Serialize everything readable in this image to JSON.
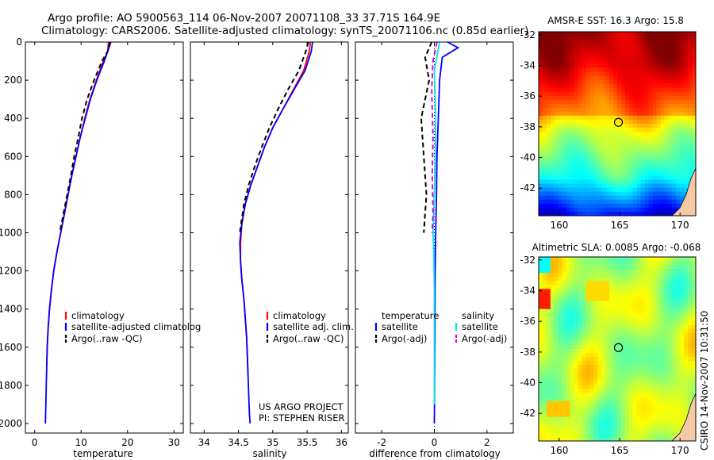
{
  "header": {
    "line1": "Argo profile: AO 5900563_114 06-Nov-2007 20071108_33 37.71S 164.9E",
    "line2": "Climatology: CARS2006. Satellite-adjusted climatology: synTS_20071106.nc (0.85d earlier)"
  },
  "colors": {
    "climatology": "#ff0000",
    "satellite": "#0000ff",
    "argo": "#000000",
    "salinity_satellite": "#00e5e5",
    "salinity_argo": "#dd00dd"
  },
  "chart_data": [
    {
      "type": "line",
      "id": "temperature",
      "xlabel": "temperature",
      "ylabel": "",
      "xlim": [
        -2,
        32
      ],
      "ylim": [
        2050,
        0
      ],
      "xticks": [
        0,
        10,
        20,
        30
      ],
      "yticks": [
        0,
        200,
        400,
        600,
        800,
        1000,
        1200,
        1400,
        1600,
        1800,
        2000
      ],
      "series": [
        {
          "name": "climatology",
          "role": "climatology",
          "style": "solid",
          "points": [
            [
              15.9,
              0
            ],
            [
              15.7,
              50
            ],
            [
              14.8,
              100
            ],
            [
              13.3,
              200
            ],
            [
              11.9,
              300
            ],
            [
              10.8,
              400
            ],
            [
              9.8,
              500
            ],
            [
              8.9,
              600
            ],
            [
              8.0,
              700
            ],
            [
              7.2,
              800
            ],
            [
              6.4,
              900
            ],
            [
              5.6,
              1000
            ],
            [
              4.8,
              1100
            ],
            [
              4.1,
              1200
            ],
            [
              3.6,
              1300
            ],
            [
              3.2,
              1400
            ],
            [
              2.9,
              1500
            ],
            [
              2.7,
              1600
            ],
            [
              2.6,
              1700
            ]
          ]
        },
        {
          "name": "satellite-adjusted climatology",
          "role": "satellite",
          "style": "solid",
          "points": [
            [
              16.4,
              0
            ],
            [
              16.0,
              30
            ],
            [
              15.0,
              100
            ],
            [
              13.4,
              200
            ],
            [
              12.0,
              300
            ],
            [
              10.9,
              400
            ],
            [
              9.8,
              500
            ],
            [
              8.9,
              600
            ],
            [
              8.0,
              700
            ],
            [
              7.2,
              800
            ],
            [
              6.4,
              900
            ],
            [
              5.6,
              1000
            ],
            [
              4.8,
              1100
            ],
            [
              4.1,
              1200
            ],
            [
              3.6,
              1300
            ],
            [
              3.2,
              1400
            ],
            [
              2.9,
              1500
            ],
            [
              2.7,
              1600
            ],
            [
              2.6,
              1700
            ],
            [
              2.5,
              1800
            ],
            [
              2.4,
              1900
            ],
            [
              2.3,
              2000
            ]
          ]
        },
        {
          "name": "Argo(..raw -QC)",
          "role": "argo",
          "style": "dashed",
          "points": [
            [
              16.2,
              0
            ],
            [
              15.7,
              50
            ],
            [
              14.5,
              100
            ],
            [
              12.8,
              200
            ],
            [
              11.3,
              300
            ],
            [
              10.2,
              400
            ],
            [
              9.4,
              500
            ],
            [
              8.5,
              600
            ],
            [
              7.8,
              700
            ],
            [
              7.0,
              800
            ],
            [
              6.2,
              900
            ],
            [
              5.4,
              1000
            ]
          ]
        }
      ],
      "legend": [
        "climatology",
        "satellite-adjusted climatolog",
        "Argo(..raw -QC)"
      ]
    },
    {
      "type": "line",
      "id": "salinity",
      "xlabel": "salinity",
      "ylabel": "",
      "xlim": [
        33.8,
        36.1
      ],
      "ylim": [
        2050,
        0
      ],
      "xticks": [
        34,
        34.5,
        35,
        35.5,
        36
      ],
      "xticklabels": [
        "34",
        "34.5",
        "35",
        "35.5",
        "36"
      ],
      "series": [
        {
          "name": "climatology",
          "role": "climatology",
          "style": "solid",
          "points": [
            [
              35.55,
              0
            ],
            [
              35.53,
              50
            ],
            [
              35.45,
              150
            ],
            [
              35.3,
              250
            ],
            [
              35.15,
              350
            ],
            [
              35.0,
              450
            ],
            [
              34.88,
              550
            ],
            [
              34.78,
              650
            ],
            [
              34.68,
              750
            ],
            [
              34.6,
              850
            ],
            [
              34.55,
              950
            ],
            [
              34.53,
              1050
            ],
            [
              34.53,
              1150
            ],
            [
              34.55,
              1250
            ],
            [
              34.58,
              1350
            ],
            [
              34.6,
              1450
            ],
            [
              34.62,
              1550
            ],
            [
              34.63,
              1650
            ],
            [
              34.64,
              1750
            ]
          ]
        },
        {
          "name": "satellite adj. clim.",
          "role": "satellite",
          "style": "solid",
          "points": [
            [
              35.58,
              0
            ],
            [
              35.56,
              50
            ],
            [
              35.47,
              150
            ],
            [
              35.31,
              250
            ],
            [
              35.15,
              350
            ],
            [
              35.0,
              450
            ],
            [
              34.88,
              550
            ],
            [
              34.78,
              650
            ],
            [
              34.68,
              750
            ],
            [
              34.6,
              850
            ],
            [
              34.55,
              950
            ],
            [
              34.52,
              1050
            ],
            [
              34.53,
              1150
            ],
            [
              34.55,
              1250
            ],
            [
              34.58,
              1350
            ],
            [
              34.6,
              1450
            ],
            [
              34.62,
              1550
            ],
            [
              34.63,
              1650
            ],
            [
              34.64,
              1750
            ],
            [
              34.65,
              1850
            ],
            [
              34.66,
              1950
            ],
            [
              34.67,
              2000
            ]
          ]
        },
        {
          "name": "Argo(..raw -QC)",
          "role": "argo",
          "style": "dashed",
          "points": [
            [
              35.52,
              0
            ],
            [
              35.48,
              50
            ],
            [
              35.38,
              150
            ],
            [
              35.22,
              250
            ],
            [
              35.08,
              350
            ],
            [
              34.95,
              450
            ],
            [
              34.84,
              550
            ],
            [
              34.74,
              650
            ],
            [
              34.65,
              750
            ],
            [
              34.58,
              850
            ],
            [
              34.54,
              950
            ],
            [
              34.52,
              1000
            ]
          ]
        }
      ],
      "legend": [
        "climatology",
        "satellite adj. clim.",
        "Argo(..raw -QC)"
      ],
      "annotations": [
        "US ARGO PROJECT",
        "PI: STEPHEN RISER"
      ]
    },
    {
      "type": "line",
      "id": "difference",
      "xlabel": "difference from climatology",
      "ylabel": "",
      "xlim": [
        -3,
        3
      ],
      "ylim": [
        2050,
        0
      ],
      "xticks": [
        -2,
        0,
        2
      ],
      "series": [
        {
          "name": "temperature satellite",
          "role": "satellite",
          "style": "solid",
          "points": [
            [
              0.5,
              0
            ],
            [
              0.9,
              30
            ],
            [
              0.3,
              80
            ],
            [
              0.2,
              200
            ],
            [
              0.15,
              400
            ],
            [
              0.1,
              600
            ],
            [
              0.08,
              800
            ],
            [
              0.05,
              1000
            ],
            [
              0.03,
              1200
            ],
            [
              0.02,
              1500
            ],
            [
              0.01,
              1800
            ],
            [
              0.0,
              2000
            ]
          ]
        },
        {
          "name": "salinity satellite",
          "role": "salinity_satellite",
          "style": "solid",
          "points": [
            [
              0.2,
              0
            ],
            [
              0.0,
              150
            ],
            [
              0.05,
              400
            ],
            [
              0.02,
              700
            ],
            [
              -0.05,
              1000
            ],
            [
              -0.02,
              1100
            ],
            [
              0.0,
              1300
            ],
            [
              0.0,
              1600
            ],
            [
              0.0,
              1900
            ]
          ]
        },
        {
          "name": "temperature Argo(-adj)",
          "role": "argo",
          "style": "dashed",
          "points": [
            [
              -0.1,
              0
            ],
            [
              -0.35,
              80
            ],
            [
              -0.2,
              200
            ],
            [
              -0.5,
              400
            ],
            [
              -0.4,
              600
            ],
            [
              -0.3,
              800
            ],
            [
              -0.4,
              1000
            ]
          ]
        },
        {
          "name": "salinity Argo(-adj)",
          "role": "salinity_argo",
          "style": "dashed",
          "points": [
            [
              0.1,
              0
            ],
            [
              -0.05,
              100
            ],
            [
              -0.1,
              250
            ],
            [
              -0.05,
              500
            ],
            [
              -0.08,
              700
            ],
            [
              -0.05,
              900
            ],
            [
              -0.08,
              1000
            ]
          ]
        }
      ],
      "legend_left": [
        "temperature",
        "satellite",
        "Argo(-adj)"
      ],
      "legend_right": [
        "salinity",
        "satellite",
        "Argo(-adj)"
      ]
    },
    {
      "type": "heatmap",
      "id": "sst_map",
      "title": "AMSR-E SST: 16.3 Argo: 15.8",
      "xlim": [
        158.3,
        171.3
      ],
      "ylim": [
        -43.8,
        -31.8
      ],
      "xticks": [
        160,
        165,
        170
      ],
      "yticks": [
        -32,
        -34,
        -36,
        -38,
        -40,
        -42
      ],
      "marker": {
        "lon": 164.9,
        "lat": -37.71
      }
    },
    {
      "type": "heatmap",
      "id": "sla_map",
      "title": "Altimetric SLA: 0.0085 Argo: -0.068",
      "xlim": [
        158.3,
        171.3
      ],
      "ylim": [
        -43.8,
        -31.8
      ],
      "xticks": [
        160,
        165,
        170
      ],
      "yticks": [
        -32,
        -34,
        -36,
        -38,
        -40,
        -42
      ],
      "marker": {
        "lon": 164.9,
        "lat": -37.71
      }
    }
  ],
  "side_label": "CSIRO 14-Nov-2007 10:31:50"
}
